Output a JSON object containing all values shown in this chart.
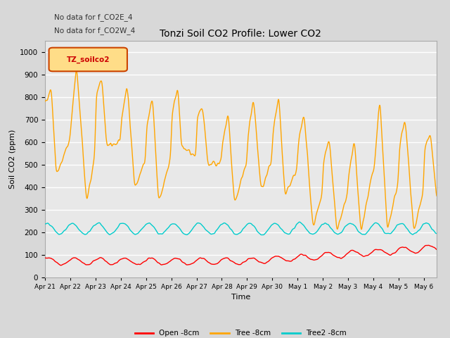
{
  "title": "Tonzi Soil CO2 Profile: Lower CO2",
  "xlabel": "Time",
  "ylabel": "Soil CO2 (ppm)",
  "annotation_lines": [
    "No data for f_CO2E_4",
    "No data for f_CO2W_4"
  ],
  "legend_label": "TZ_soilco2",
  "ylim": [
    0,
    1050
  ],
  "series": {
    "open": {
      "label": "Open -8cm",
      "color": "#ff0000"
    },
    "tree": {
      "label": "Tree -8cm",
      "color": "#ffa500"
    },
    "tree2": {
      "label": "Tree2 -8cm",
      "color": "#00cccc"
    }
  },
  "xtick_labels": [
    "Apr 21",
    "Apr 22",
    "Apr 23",
    "Apr 24",
    "Apr 25",
    "Apr 26",
    "Apr 27",
    "Apr 28",
    "Apr 29",
    "Apr 30",
    "May 1",
    "May 2",
    "May 3",
    "May 4",
    "May 5",
    "May 6"
  ],
  "background_color": "#d8d8d8",
  "plot_bg_color": "#e8e8e8",
  "grid_color": "#ffffff",
  "figsize": [
    6.4,
    4.8
  ],
  "dpi": 100
}
